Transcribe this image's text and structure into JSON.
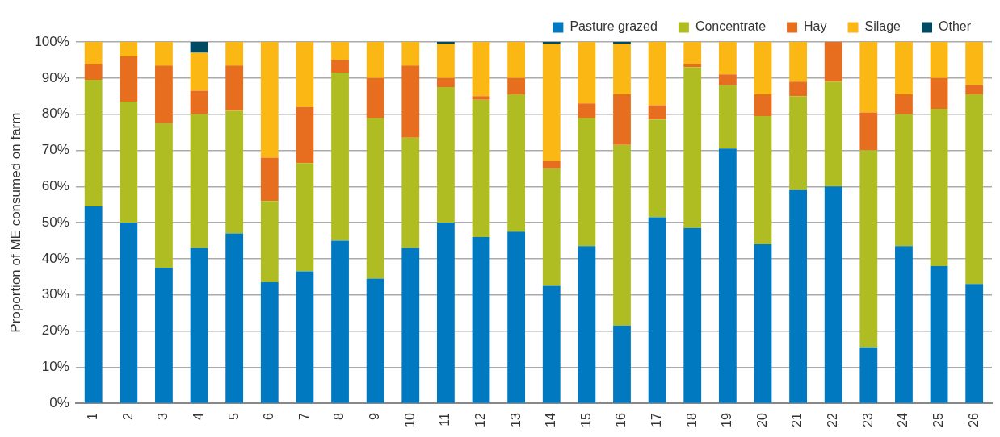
{
  "chart_data": {
    "type": "bar",
    "stacked": true,
    "ylabel": "Proportion of ME consumed on farm",
    "categories": [
      "1",
      "2",
      "3",
      "4",
      "5",
      "6",
      "7",
      "8",
      "9",
      "10",
      "11",
      "12",
      "13",
      "14",
      "15",
      "16",
      "17",
      "18",
      "19",
      "20",
      "21",
      "22",
      "23",
      "24",
      "25",
      "26"
    ],
    "series": [
      {
        "name": "Pasture grazed",
        "color": "#0079c1",
        "values": [
          54.5,
          50,
          37.5,
          43,
          47,
          33.5,
          36.5,
          45,
          34.5,
          43,
          50,
          46,
          47.5,
          32.5,
          43.5,
          21.5,
          51.5,
          48.5,
          70.5,
          44,
          59,
          60,
          15.5,
          43.5,
          38,
          33
        ]
      },
      {
        "name": "Concentrate",
        "color": "#afbd22",
        "values": [
          35,
          33.5,
          40,
          37,
          34,
          22.5,
          30,
          46.5,
          44.5,
          30.5,
          37.5,
          38,
          38,
          32.5,
          35.5,
          50,
          27,
          44.5,
          17.5,
          35.5,
          26,
          29,
          54.5,
          36.5,
          43.5,
          52.5
        ]
      },
      {
        "name": "Hay",
        "color": "#e86e1f",
        "values": [
          4.5,
          12.5,
          16,
          6.5,
          12.5,
          12,
          15.5,
          3.5,
          11,
          20,
          2.5,
          1,
          4.5,
          2,
          4,
          14,
          4,
          1,
          3,
          6,
          4,
          11,
          10.5,
          5.5,
          8.5,
          2.5
        ]
      },
      {
        "name": "Silage",
        "color": "#fbb714",
        "values": [
          6,
          4,
          6.5,
          10.5,
          6.5,
          32,
          18,
          5,
          10,
          6.5,
          9.5,
          15,
          10,
          32.5,
          17,
          14,
          17.5,
          6,
          9,
          14.5,
          11,
          0,
          19.5,
          14.5,
          10,
          12
        ]
      },
      {
        "name": "Other",
        "color": "#004b63",
        "values": [
          0,
          0,
          0,
          3,
          0,
          0,
          0,
          0,
          0,
          0,
          0.5,
          0,
          0,
          0.5,
          0,
          0.5,
          0,
          0,
          0,
          0,
          0,
          0,
          0,
          0,
          0,
          0
        ]
      }
    ],
    "ylim": [
      0,
      100
    ],
    "yticks": [
      {
        "value": 0,
        "label": "0%"
      },
      {
        "value": 10,
        "label": "10%"
      },
      {
        "value": 20,
        "label": "20%"
      },
      {
        "value": 30,
        "label": "30%"
      },
      {
        "value": 40,
        "label": "40%"
      },
      {
        "value": 50,
        "label": "50%"
      },
      {
        "value": 60,
        "label": "60%"
      },
      {
        "value": 70,
        "label": "70%"
      },
      {
        "value": 80,
        "label": "80%"
      },
      {
        "value": 90,
        "label": "90%"
      },
      {
        "value": 100,
        "label": "100%"
      }
    ],
    "grid": "y",
    "legend": "top right"
  }
}
